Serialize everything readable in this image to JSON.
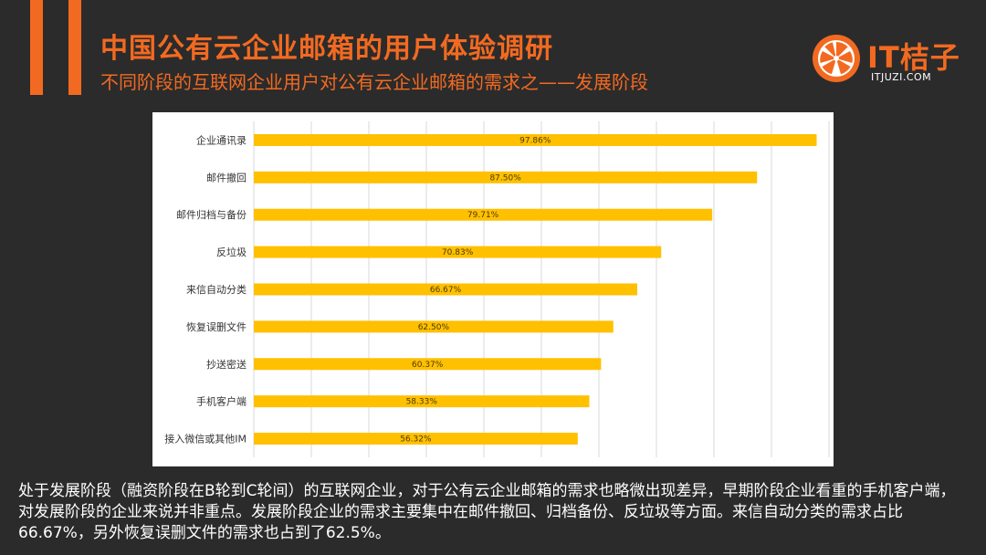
{
  "header": {
    "title": "中国公有云企业邮箱的用户体验调研",
    "subtitle": "不同阶段的互联网企业用户对公有云企业邮箱的需求之——发展阶段"
  },
  "logo": {
    "text": "IT桔子",
    "url": "ITJUZI.COM",
    "icon": "orange-slice-icon"
  },
  "colors": {
    "accent": "#f26a21",
    "bar": "#ffc000",
    "background": "#2b2b2b"
  },
  "chart_data": {
    "type": "bar",
    "orientation": "horizontal",
    "categories": [
      "企业通讯录",
      "邮件撤回",
      "邮件归档与备份",
      "反垃圾",
      "来信自动分类",
      "恢复误删文件",
      "抄送密送",
      "手机客户端",
      "接入微信或其他IM"
    ],
    "values": [
      97.86,
      87.5,
      79.71,
      70.83,
      66.67,
      62.5,
      60.37,
      58.33,
      56.32
    ],
    "value_labels": [
      "97.86%",
      "87.50%",
      "79.71%",
      "70.83%",
      "66.67%",
      "62.50%",
      "60.37%",
      "58.33%",
      "56.32%"
    ],
    "xlim": [
      0,
      100
    ],
    "grid": true,
    "legend": "none"
  },
  "description": "处于发展阶段（融资阶段在B轮到C轮间）的互联网企业，对于公有云企业邮箱的需求也略微出现差异，早期阶段企业看重的手机客户端，对发展阶段的企业来说并非重点。发展阶段企业的需求主要集中在邮件撤回、归档备份、反垃圾等方面。来信自动分类的需求占比66.67%，另外恢复误删文件的需求也占到了62.5%。"
}
